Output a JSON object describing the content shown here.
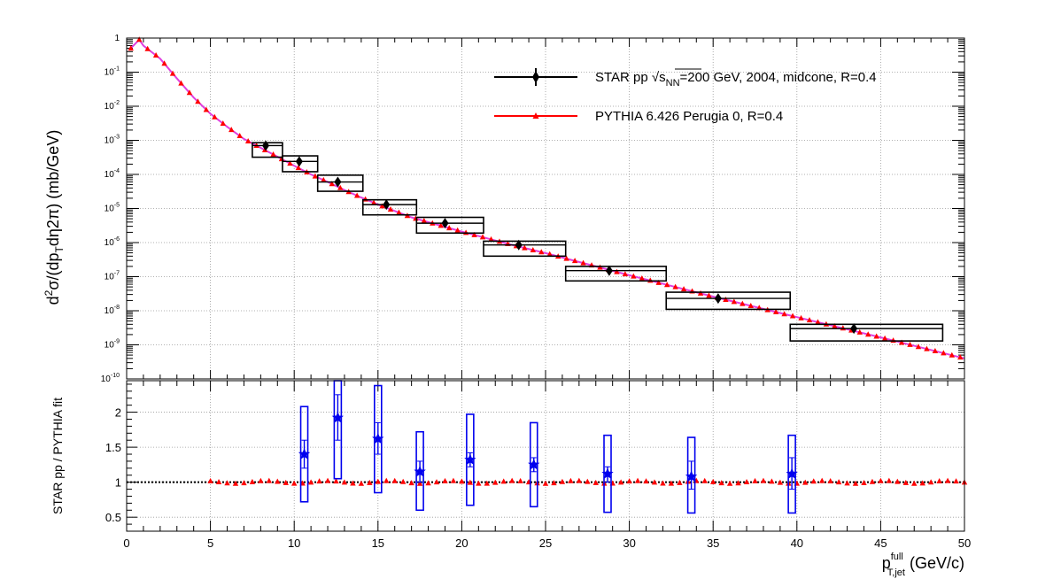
{
  "chart_data": [
    {
      "panel": "top",
      "type": "scatter",
      "yscale": "log",
      "xlim": [
        0,
        50
      ],
      "ylim": [
        1e-10,
        1
      ],
      "grid": true,
      "legend_position": "top-right",
      "ylabel": "d²σ/(dp_T dη2π) (mb/GeV)",
      "y_tick_labels": [
        {
          "value": 1,
          "base": "1",
          "exp": ""
        },
        {
          "value": 0.1,
          "base": "10",
          "exp": "-1"
        },
        {
          "value": 0.01,
          "base": "10",
          "exp": "-2"
        },
        {
          "value": 0.001,
          "base": "10",
          "exp": "-3"
        },
        {
          "value": 0.0001,
          "base": "10",
          "exp": "-4"
        },
        {
          "value": 1e-05,
          "base": "10",
          "exp": "-5"
        },
        {
          "value": 1e-06,
          "base": "10",
          "exp": "-6"
        },
        {
          "value": 1e-07,
          "base": "10",
          "exp": "-7"
        },
        {
          "value": 1e-08,
          "base": "10",
          "exp": "-8"
        },
        {
          "value": 1e-09,
          "base": "10",
          "exp": "-9"
        },
        {
          "value": 1e-10,
          "base": "10",
          "exp": "-10"
        }
      ],
      "series": [
        {
          "name": "STAR pp √s_NN=200 GeV, 2004, midcone, R=0.4",
          "legend_text": {
            "pre": "STAR pp ",
            "sqrt": "s",
            "sub": "NN",
            "post": "=200 GeV, 2004, midcone, R=0.4"
          },
          "marker": "diamond",
          "color": "#000000",
          "points": [
            {
              "x": 8.3,
              "y": 0.0007,
              "xlo": 7.5,
              "xhi": 9.3,
              "syslo": 0.00032,
              "syshi": 0.00085
            },
            {
              "x": 10.3,
              "y": 0.00024,
              "xlo": 9.3,
              "xhi": 11.4,
              "syslo": 0.00012,
              "syshi": 0.00035
            },
            {
              "x": 12.6,
              "y": 6e-05,
              "xlo": 11.4,
              "xhi": 14.1,
              "syslo": 3.2e-05,
              "syshi": 9.5e-05
            },
            {
              "x": 15.5,
              "y": 1.3e-05,
              "xlo": 14.1,
              "xhi": 17.3,
              "syslo": 6.5e-06,
              "syshi": 1.8e-05
            },
            {
              "x": 19.0,
              "y": 3.7e-06,
              "xlo": 17.3,
              "xhi": 21.3,
              "syslo": 1.9e-06,
              "syshi": 5.5e-06
            },
            {
              "x": 23.4,
              "y": 8.5e-07,
              "xlo": 21.3,
              "xhi": 26.2,
              "syslo": 4e-07,
              "syshi": 1.1e-06
            },
            {
              "x": 28.8,
              "y": 1.5e-07,
              "xlo": 26.2,
              "xhi": 32.2,
              "syslo": 7.5e-08,
              "syshi": 2e-07
            },
            {
              "x": 35.3,
              "y": 2.3e-08,
              "xlo": 32.2,
              "xhi": 39.6,
              "syslo": 1.1e-08,
              "syshi": 3.5e-08
            },
            {
              "x": 43.4,
              "y": 3e-09,
              "xlo": 39.6,
              "xhi": 48.7,
              "syslo": 1.3e-09,
              "syshi": 4e-09
            }
          ]
        },
        {
          "name": "PYTHIA 6.426 Perugia 0, R=0.4",
          "marker": "triangle",
          "color": "#ff0000",
          "fit_color": "#e040e0",
          "curve": [
            [
              0.25,
              0.5
            ],
            [
              0.75,
              0.9
            ],
            [
              1,
              0.6
            ],
            [
              2,
              0.25
            ],
            [
              3,
              0.065
            ],
            [
              4,
              0.018
            ],
            [
              5,
              0.006
            ],
            [
              6,
              0.0025
            ],
            [
              7,
              0.0011
            ],
            [
              8,
              0.0006
            ],
            [
              9,
              0.00033
            ],
            [
              10,
              0.00018
            ],
            [
              11,
              0.0001
            ],
            [
              12,
              6e-05
            ],
            [
              13,
              3.5e-05
            ],
            [
              14,
              2.1e-05
            ],
            [
              15,
              1.3e-05
            ],
            [
              17,
              5.5e-06
            ],
            [
              20,
              2.1e-06
            ],
            [
              23,
              8.5e-07
            ],
            [
              25,
              4.9e-07
            ],
            [
              30,
              1.1e-07
            ],
            [
              35,
              2.6e-08
            ],
            [
              40,
              6.5e-09
            ],
            [
              45,
              1.65e-09
            ],
            [
              50,
              4e-10
            ]
          ]
        }
      ]
    },
    {
      "panel": "bottom",
      "type": "scatter",
      "xlim": [
        0,
        50
      ],
      "ylim": [
        0.3,
        2.45
      ],
      "grid": true,
      "ylabel": "STAR pp / PYTHIA fit",
      "xlabel": {
        "main": "p",
        "sup": "full",
        "sub": "T,jet",
        "unit": " (GeV/c)"
      },
      "x_ticks": [
        0,
        5,
        10,
        15,
        20,
        25,
        30,
        35,
        40,
        45,
        50
      ],
      "y_ticks": [
        0.5,
        1,
        1.5,
        2
      ],
      "y_tick_labels": [
        "0.5",
        "1",
        "1.5",
        "2"
      ],
      "reference_line": 1,
      "series": [
        {
          "name": "STAR pp / PYTHIA fit",
          "marker": "star",
          "color": "#0000ee",
          "points": [
            {
              "x": 10.6,
              "y": 1.4,
              "errlo": 1.2,
              "errhi": 1.6,
              "syslo": 0.72,
              "syshi": 2.08
            },
            {
              "x": 12.6,
              "y": 1.92,
              "errlo": 1.6,
              "errhi": 2.25,
              "syslo": 1.05,
              "syshi": 2.45
            },
            {
              "x": 15.0,
              "y": 1.62,
              "errlo": 1.4,
              "errhi": 1.85,
              "syslo": 0.85,
              "syshi": 2.38
            },
            {
              "x": 17.5,
              "y": 1.15,
              "errlo": 1.0,
              "errhi": 1.3,
              "syslo": 0.6,
              "syshi": 1.72
            },
            {
              "x": 20.5,
              "y": 1.32,
              "errlo": 1.22,
              "errhi": 1.42,
              "syslo": 0.67,
              "syshi": 1.97
            },
            {
              "x": 24.3,
              "y": 1.25,
              "errlo": 1.15,
              "errhi": 1.35,
              "syslo": 0.65,
              "syshi": 1.85
            },
            {
              "x": 28.7,
              "y": 1.12,
              "errlo": 1.0,
              "errhi": 1.22,
              "syslo": 0.57,
              "syshi": 1.67
            },
            {
              "x": 33.7,
              "y": 1.08,
              "errlo": 0.9,
              "errhi": 1.3,
              "syslo": 0.56,
              "syshi": 1.64
            },
            {
              "x": 39.7,
              "y": 1.12,
              "errlo": 0.9,
              "errhi": 1.35,
              "syslo": 0.56,
              "syshi": 1.67
            }
          ]
        },
        {
          "name": "PYTHIA ratio",
          "marker": "triangle",
          "color": "#ff0000",
          "values_y": 1.0
        }
      ]
    }
  ]
}
